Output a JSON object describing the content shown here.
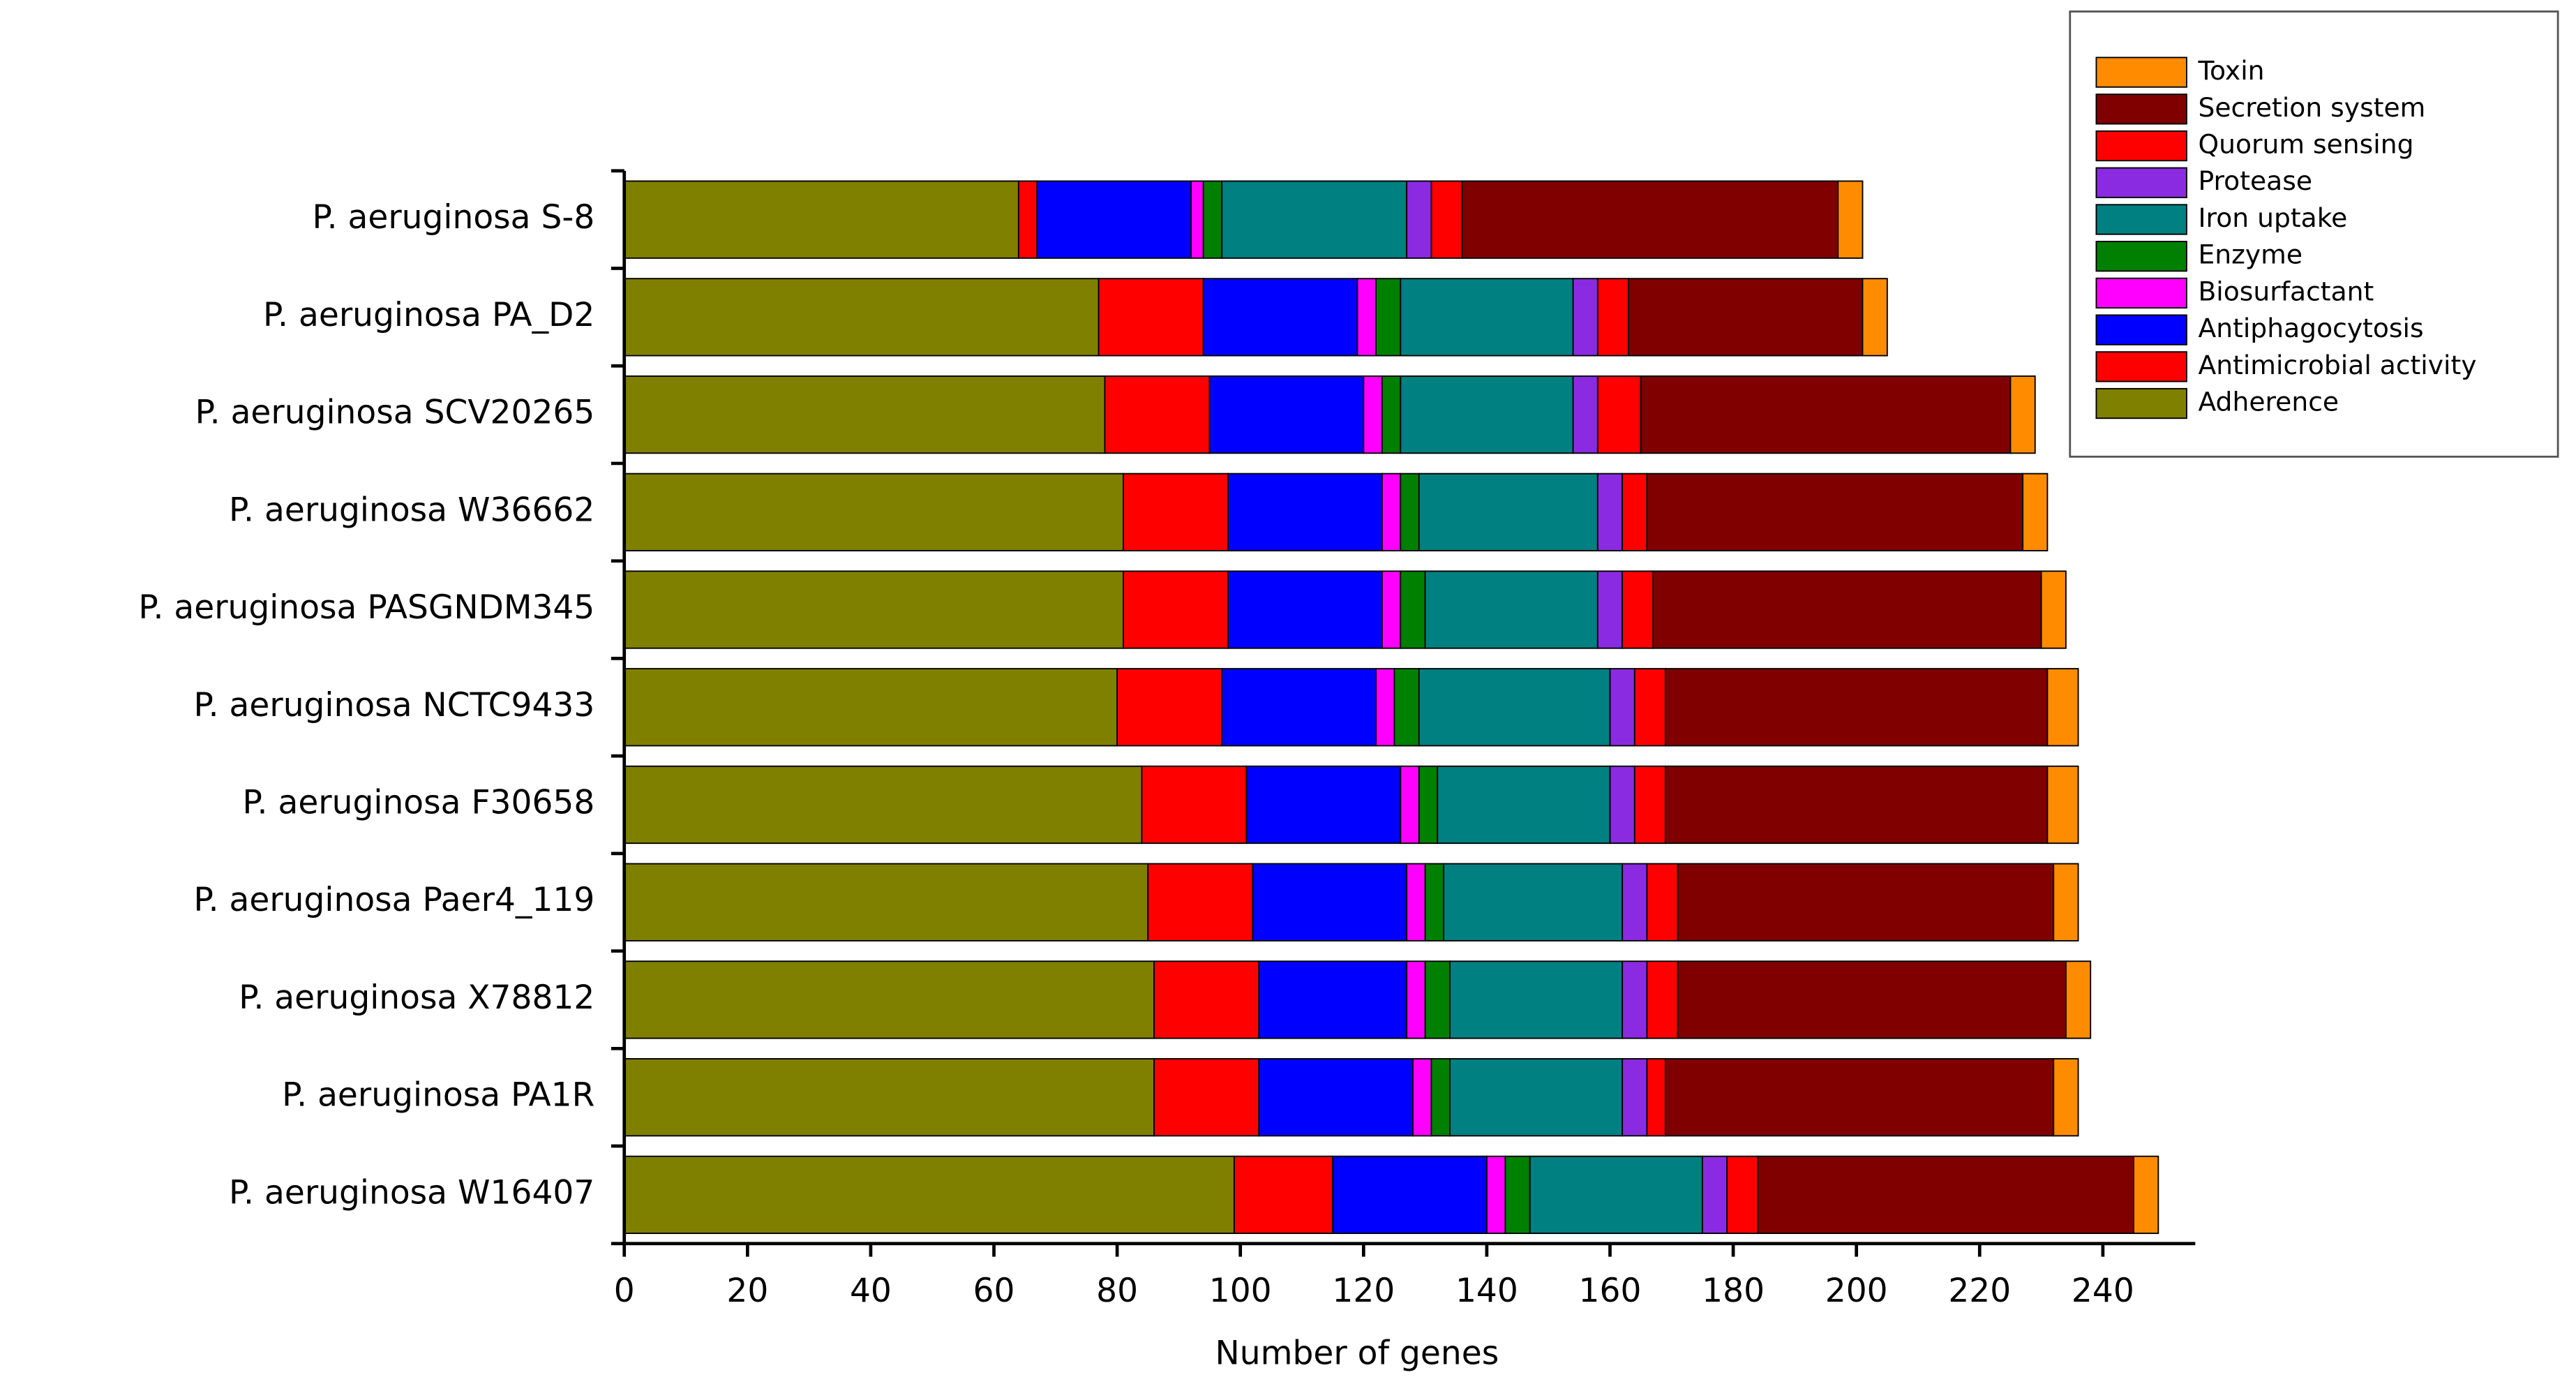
{
  "chart_data": {
    "type": "stacked-barh",
    "categories": [
      "P. aeruginosa S-8",
      "P. aeruginosa PA_D2",
      "P. aeruginosa SCV20265",
      "P. aeruginosa W36662",
      "P. aeruginosa PASGNDM345",
      "P. aeruginosa NCTC9433",
      "P. aeruginosa F30658",
      "P. aeruginosa Paer4_119",
      "P. aeruginosa X78812",
      "P. aeruginosa PA1R",
      "P. aeruginosa W16407"
    ],
    "series": [
      {
        "name": "Adherence",
        "color": "#808000",
        "values": [
          64,
          77,
          78,
          81,
          81,
          80,
          84,
          85,
          86,
          86,
          99
        ]
      },
      {
        "name": "Antimicrobial activity",
        "color": "#ff0000",
        "values": [
          3,
          17,
          17,
          17,
          17,
          17,
          17,
          17,
          17,
          17,
          16
        ]
      },
      {
        "name": "Antiphagocytosis",
        "color": "#0000ff",
        "values": [
          25,
          25,
          25,
          25,
          25,
          25,
          25,
          25,
          24,
          25,
          25
        ]
      },
      {
        "name": "Biosurfactant",
        "color": "#ff00ff",
        "values": [
          2,
          3,
          3,
          3,
          3,
          3,
          3,
          3,
          3,
          3,
          3
        ]
      },
      {
        "name": "Enzyme",
        "color": "#008000",
        "values": [
          3,
          4,
          3,
          3,
          4,
          4,
          3,
          3,
          4,
          3,
          4
        ]
      },
      {
        "name": "Iron uptake",
        "color": "#008080",
        "values": [
          30,
          28,
          28,
          29,
          28,
          31,
          28,
          29,
          28,
          28,
          28
        ]
      },
      {
        "name": "Protease",
        "color": "#8a2be2",
        "values": [
          4,
          4,
          4,
          4,
          4,
          4,
          4,
          4,
          4,
          4,
          4
        ]
      },
      {
        "name": "Quorum sensing",
        "color": "#ff0000",
        "values": [
          5,
          5,
          7,
          4,
          5,
          5,
          5,
          5,
          5,
          3,
          5
        ]
      },
      {
        "name": "Secretion system",
        "color": "#800000",
        "values": [
          61,
          38,
          60,
          61,
          63,
          62,
          62,
          61,
          63,
          63,
          61
        ]
      },
      {
        "name": "Toxin",
        "color": "#ff8c00",
        "values": [
          4,
          4,
          4,
          4,
          4,
          5,
          5,
          4,
          4,
          4,
          4
        ]
      }
    ],
    "xlabel": "Number of genes",
    "xlim": [
      0,
      255
    ],
    "xticks": [
      0,
      20,
      40,
      60,
      80,
      100,
      120,
      140,
      160,
      180,
      200,
      220,
      240
    ],
    "legend": "upper-right"
  }
}
